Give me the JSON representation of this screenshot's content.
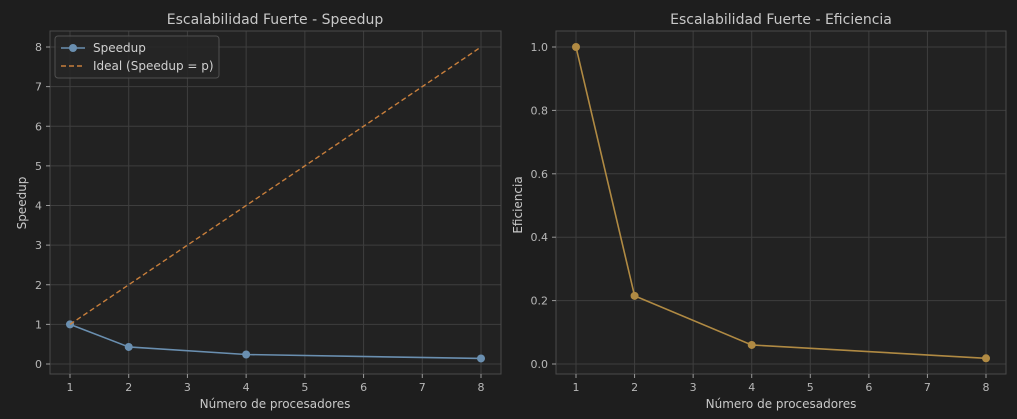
{
  "figure": {
    "background": "#1e1e1e",
    "panel_background": "#222222"
  },
  "chart_data": [
    {
      "type": "line",
      "title": "Escalabilidad Fuerte - Speedup",
      "xlabel": "Número de procesadores",
      "ylabel": "Speedup",
      "xlim": [
        1,
        8
      ],
      "ylim": [
        0,
        8
      ],
      "xticks": [
        1,
        2,
        3,
        4,
        5,
        6,
        7,
        8
      ],
      "yticks": [
        0,
        1,
        2,
        3,
        4,
        5,
        6,
        7,
        8
      ],
      "grid": true,
      "legend": "top-left",
      "series": [
        {
          "name": "Speedup",
          "x": [
            1,
            2,
            4,
            8
          ],
          "y": [
            1.0,
            0.43,
            0.24,
            0.14
          ],
          "color": "#6a8fb0",
          "style": "solid",
          "marker": "circle"
        },
        {
          "name": "Ideal (Speedup = p)",
          "x": [
            1,
            8
          ],
          "y": [
            1,
            8
          ],
          "color": "#c87f3c",
          "style": "dashed",
          "marker": "none"
        }
      ]
    },
    {
      "type": "line",
      "title": "Escalabilidad Fuerte - Eficiencia",
      "xlabel": "Número de procesadores",
      "ylabel": "Eficiencia",
      "xlim": [
        1,
        8
      ],
      "ylim": [
        0,
        1
      ],
      "xticks": [
        1,
        2,
        3,
        4,
        5,
        6,
        7,
        8
      ],
      "yticks": [
        0.0,
        0.2,
        0.4,
        0.6,
        0.8,
        1.0
      ],
      "ytick_labels": [
        "0.0",
        "0.2",
        "0.4",
        "0.6",
        "0.8",
        "1.0"
      ],
      "grid": true,
      "series": [
        {
          "name": "",
          "x": [
            1,
            2,
            4,
            8
          ],
          "y": [
            1.0,
            0.215,
            0.06,
            0.018
          ],
          "color": "#b08a43",
          "style": "solid",
          "marker": "circle"
        }
      ]
    }
  ]
}
